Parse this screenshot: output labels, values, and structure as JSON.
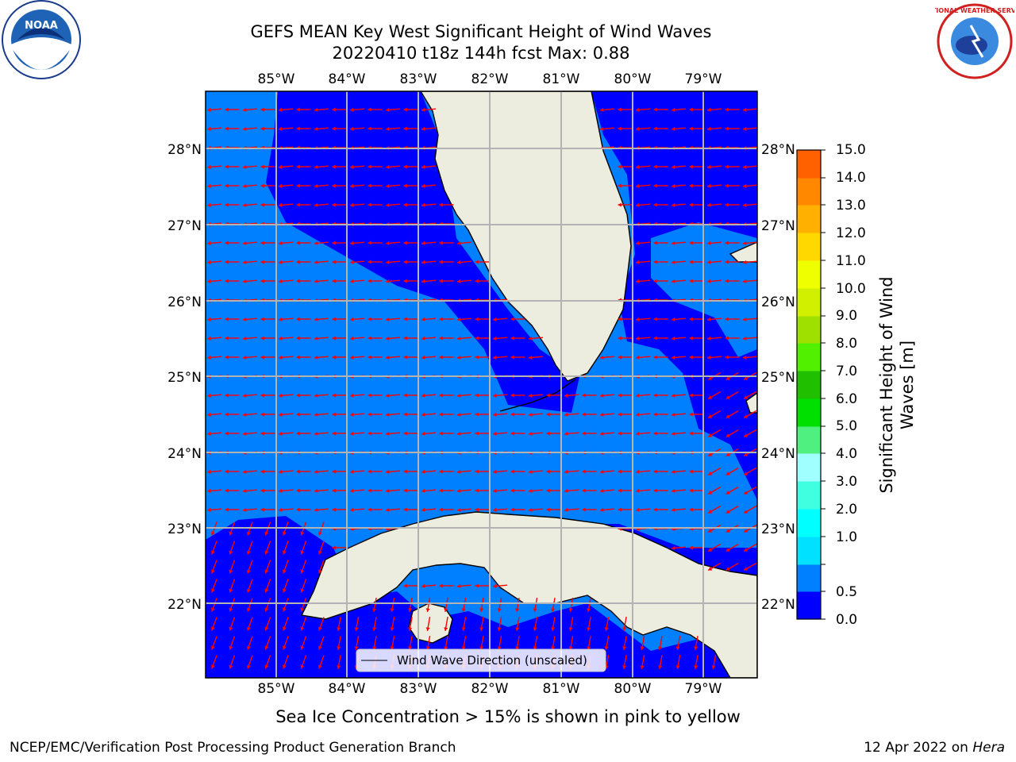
{
  "header": {
    "title_line1": "GEFS MEAN Key West Significant Height of Wind Waves",
    "title_line2": "20220410 t18z 144h fcst   Max: 0.88"
  },
  "logos": {
    "noaa_text": "NOAA",
    "nws_text": "NATIONAL WEATHER SERVICE"
  },
  "map": {
    "lon_labels": [
      "85°W",
      "84°W",
      "83°W",
      "82°W",
      "81°W",
      "80°W",
      "79°W"
    ],
    "lat_labels": [
      "28°N",
      "27°N",
      "26°N",
      "25°N",
      "24°N",
      "23°N",
      "22°N"
    ],
    "legend_label": "Wind Wave Direction (unscaled)",
    "colors": {
      "land": "#ededdf",
      "band_0_0_5": "#0000ff",
      "band_0_5_1_0": "#0080ff",
      "grid": "#b3b3b3",
      "arrow": "#ff0000"
    }
  },
  "colorbar": {
    "ticks": [
      "15.0",
      "14.0",
      "13.0",
      "12.0",
      "11.0",
      "10.0",
      "9.0",
      "8.0",
      "7.0",
      "6.0",
      "5.0",
      "4.0",
      "3.0",
      "2.0",
      "1.0",
      "0.5",
      "0.0"
    ],
    "label": "Significant Height of Wind Waves [m]",
    "colors": [
      "#0000ff",
      "#0080ff",
      "#00e0ff",
      "#00ffff",
      "#40ffe0",
      "#a0ffff",
      "#50f080",
      "#00e000",
      "#20c000",
      "#50f000",
      "#a0e000",
      "#d0f000",
      "#f0ff00",
      "#ffd800",
      "#ffb000",
      "#ff8800",
      "#ff6000",
      "#ff3000",
      "#ff0000"
    ]
  },
  "caption": "Sea Ice Concentration > 15% is shown in pink to yellow",
  "footer": {
    "left": "NCEP/EMC/Verification Post Processing Product Generation Branch",
    "right_date": "12 Apr 2022 on ",
    "right_host": "Hera"
  }
}
